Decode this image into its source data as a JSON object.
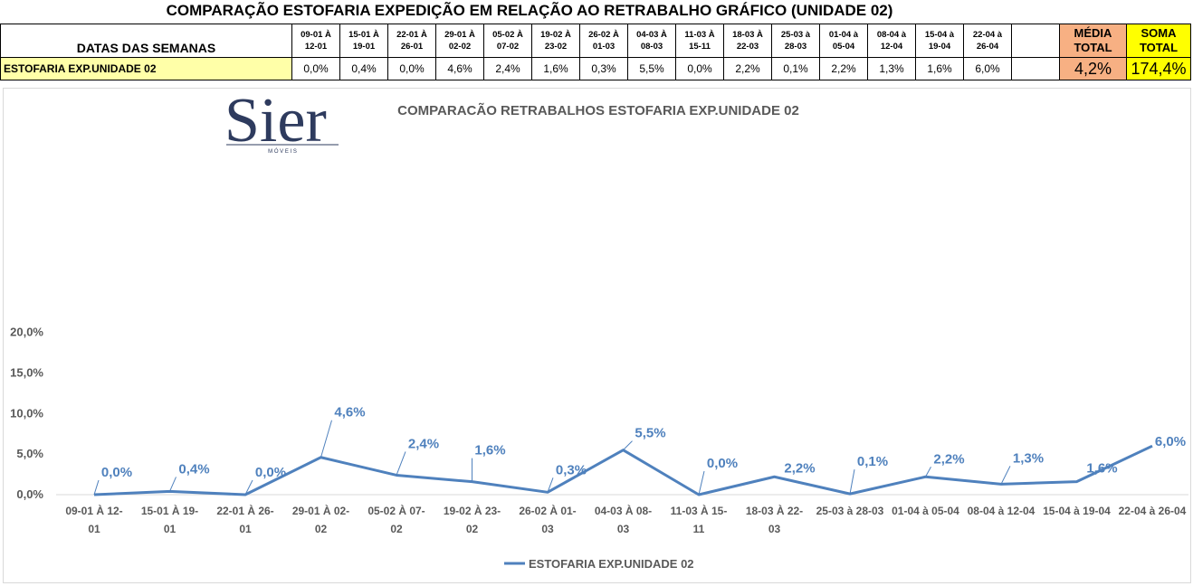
{
  "sheet": {
    "title": "COMPARAÇÃO ESTOFARIA EXPEDIÇÃO  EM RELAÇÃO AO RETRABALHO GRÁFICO (UNIDADE 02)",
    "dates_header": "DATAS DAS SEMANAS",
    "row_label": "ESTOFARIA EXP.UNIDADE 02",
    "weeks": [
      {
        "top": "09-01 À",
        "bottom": "12-01",
        "value": "0,0%"
      },
      {
        "top": "15-01 À",
        "bottom": "19-01",
        "value": "0,4%"
      },
      {
        "top": "22-01 À",
        "bottom": "26-01",
        "value": "0,0%"
      },
      {
        "top": "29-01 À",
        "bottom": "02-02",
        "value": "4,6%"
      },
      {
        "top": "05-02 À",
        "bottom": "07-02",
        "value": "2,4%"
      },
      {
        "top": "19-02 À",
        "bottom": "23-02",
        "value": "1,6%"
      },
      {
        "top": "26-02 À",
        "bottom": "01-03",
        "value": "0,3%"
      },
      {
        "top": "04-03 À",
        "bottom": "08-03",
        "value": "5,5%"
      },
      {
        "top": "11-03 À",
        "bottom": "15-11",
        "value": "0,0%"
      },
      {
        "top": "18-03 À",
        "bottom": "22-03",
        "value": "2,2%"
      },
      {
        "top": "25-03 à",
        "bottom": "28-03",
        "value": "0,1%"
      },
      {
        "top": "01-04 à",
        "bottom": "05-04",
        "value": "2,2%"
      },
      {
        "top": "08-04 à",
        "bottom": "12-04",
        "value": "1,3%"
      },
      {
        "top": "15-04 à",
        "bottom": "19-04",
        "value": "1,6%"
      },
      {
        "top": "22-04 à",
        "bottom": "26-04",
        "value": "6,0%"
      }
    ],
    "media_label": "MÉDIA TOTAL",
    "media_value": "4,2%",
    "soma_label": "SOMA TOTAL",
    "soma_value": "174,4%"
  },
  "logo": {
    "text": "Sier",
    "subtext": "M Ó V E I S",
    "color": "#2e3b5e"
  },
  "chart_data": {
    "type": "line",
    "title": "COMPARACÃO RETRABALHOS  ESTOFARIA EXP.UNIDADE 02",
    "categories": [
      "09-01 À 12-01",
      "15-01 À 19-01",
      "22-01 À 26-01",
      "29-01 À 02-02",
      "05-02 À 07-02",
      "19-02 À 23-02",
      "26-02 À 01-03",
      "04-03 À 08-03",
      "11-03 À 15-11",
      "18-03 À 22-03",
      "25-03 à 28-03",
      "01-04 à 05-04",
      "08-04 à 12-04",
      "15-04 à 19-04",
      "22-04 à 26-04"
    ],
    "x_tick_lines": [
      [
        "09-01 À 12-",
        "01"
      ],
      [
        "15-01 À 19-",
        "01"
      ],
      [
        "22-01 À 26-",
        "01"
      ],
      [
        "29-01 À 02-",
        "02"
      ],
      [
        "05-02 À 07-",
        "02"
      ],
      [
        "19-02 À 23-",
        "02"
      ],
      [
        "26-02 À 01-",
        "03"
      ],
      [
        "04-03 À 08-",
        "03"
      ],
      [
        "11-03 À 15-",
        "11"
      ],
      [
        "18-03 À 22-",
        "03"
      ],
      [
        "25-03 à 28-03"
      ],
      [
        "01-04 à 05-04"
      ],
      [
        "08-04 à 12-04"
      ],
      [
        "15-04 à 19-04"
      ],
      [
        "22-04 à 26-04"
      ]
    ],
    "series": [
      {
        "name": "ESTOFARIA EXP.UNIDADE 02",
        "values": [
          0.0,
          0.4,
          0.0,
          4.6,
          2.4,
          1.6,
          0.3,
          5.5,
          0.0,
          2.2,
          0.1,
          2.2,
          1.3,
          1.6,
          6.0
        ],
        "labels": [
          "0,0%",
          "0,4%",
          "0,0%",
          "4,6%",
          "2,4%",
          "1,6%",
          "0,3%",
          "5,5%",
          "0,0%",
          "2,2%",
          "0,1%",
          "2,2%",
          "1,3%",
          "1,6%",
          "6,0%"
        ],
        "color": "#4f81bd"
      }
    ],
    "ylim": [
      0,
      20
    ],
    "yticks": [
      "0,0%",
      "5,0%",
      "10,0%",
      "15,0%",
      "20,0%"
    ],
    "grid": false,
    "legend": "bottom"
  }
}
